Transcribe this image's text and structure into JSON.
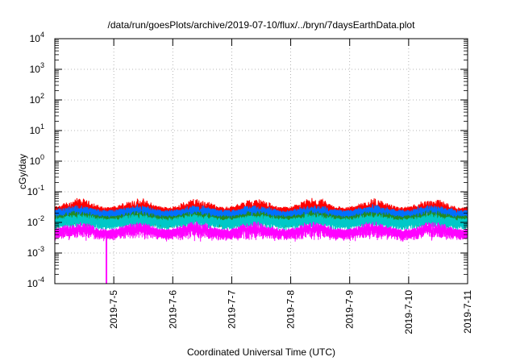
{
  "chart_data": {
    "type": "line",
    "title": "/data/run/goesPlots/archive/2019-07-10/flux/../bryn/7daysEarthData.plot",
    "xlabel": "Coordinated Universal Time (UTC)",
    "ylabel": "cGy/day",
    "y_scale": "log",
    "ylim": [
      0.0001,
      10000
    ],
    "xlim": [
      "2019-07-04 00:00",
      "2019-07-11 00:00"
    ],
    "grid": true,
    "x_ticks": [
      "2019-7-5",
      "2019-7-6",
      "2019-7-7",
      "2019-7-8",
      "2019-7-9",
      "2019-7-10",
      "2019-7-11"
    ],
    "y_ticks": [
      {
        "base": "10",
        "exp": "-4"
      },
      {
        "base": "10",
        "exp": "-3"
      },
      {
        "base": "10",
        "exp": "-2"
      },
      {
        "base": "10",
        "exp": "-1"
      },
      {
        "base": "10",
        "exp": "0"
      },
      {
        "base": "10",
        "exp": "1"
      },
      {
        "base": "10",
        "exp": "2"
      },
      {
        "base": "10",
        "exp": "3"
      },
      {
        "base": "10",
        "exp": "4"
      }
    ],
    "series": [
      {
        "color": "#ff0000",
        "typical_peak": 0.07,
        "typical_base": 0.02
      },
      {
        "color": "#0070ff",
        "typical_peak": 0.04,
        "typical_base": 0.018
      },
      {
        "color": "#228b22",
        "typical_peak": 0.025,
        "typical_base": 0.012
      },
      {
        "color": "#00c8c8",
        "typical_peak": 0.02,
        "typical_base": 0.01
      },
      {
        "color": "#ff00ff",
        "typical_peak": 0.012,
        "typical_base": 0.004,
        "dip": {
          "x": "2019-07-04 21:00",
          "value": 0.0001
        }
      }
    ]
  }
}
